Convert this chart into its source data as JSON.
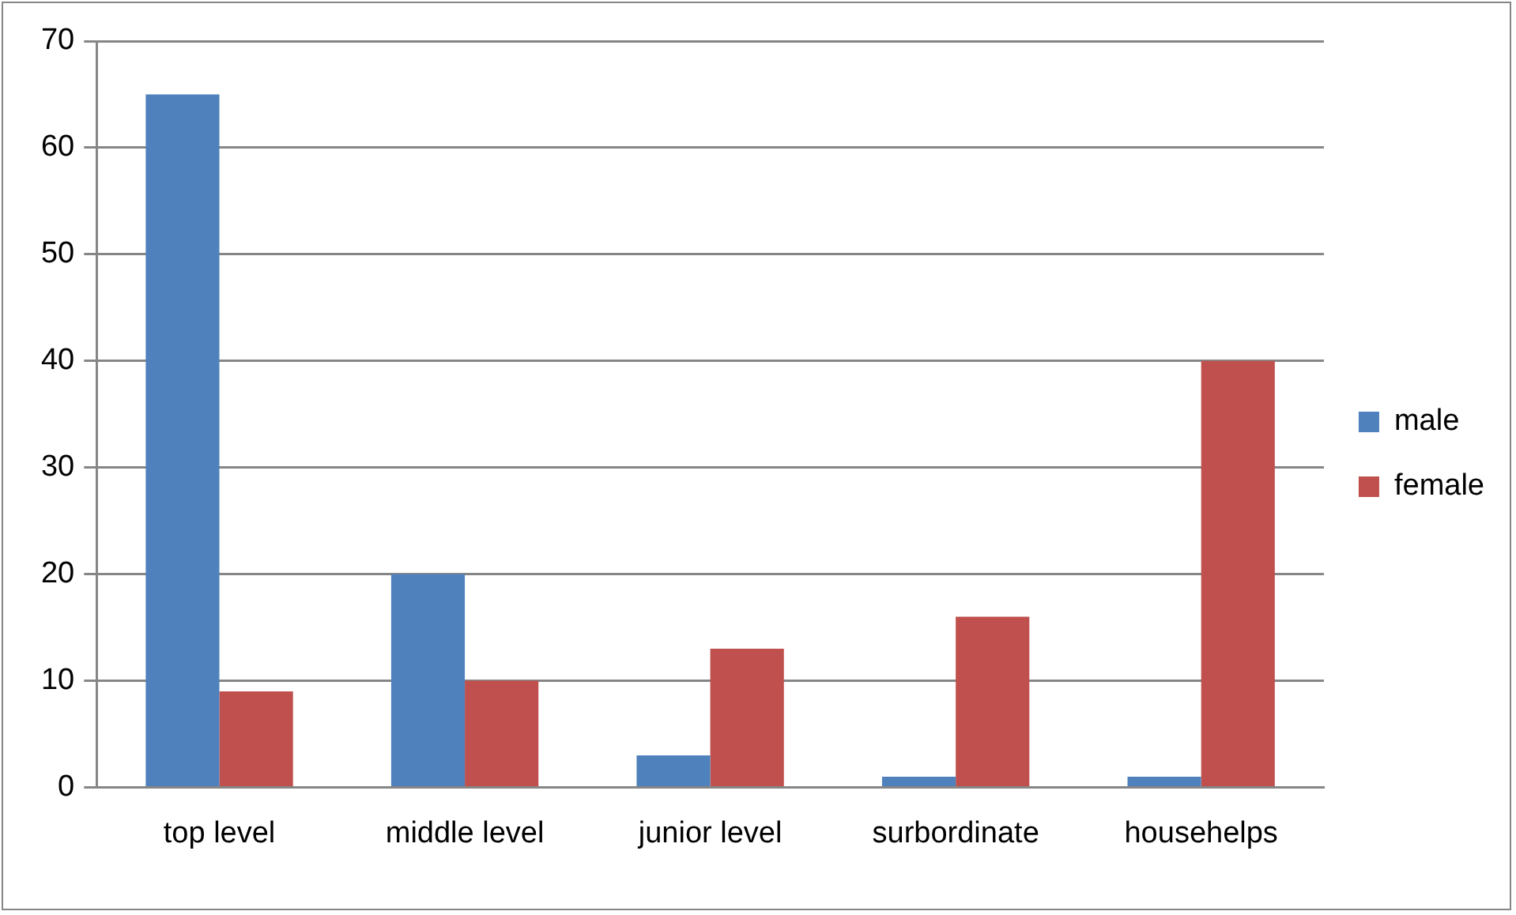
{
  "chart_data": {
    "type": "bar",
    "categories": [
      "top level",
      "middle level",
      "junior level",
      "surbordinate",
      "househelps"
    ],
    "series": [
      {
        "name": "male",
        "color": "#4f81bd",
        "values": [
          65,
          20,
          3,
          1,
          1
        ]
      },
      {
        "name": "female",
        "color": "#c0504d",
        "values": [
          9,
          10,
          13,
          16,
          40
        ]
      }
    ],
    "ylim": [
      0,
      70
    ],
    "yticks": [
      0,
      10,
      20,
      30,
      40,
      50,
      60,
      70
    ],
    "grid": "y",
    "legend": "right"
  }
}
